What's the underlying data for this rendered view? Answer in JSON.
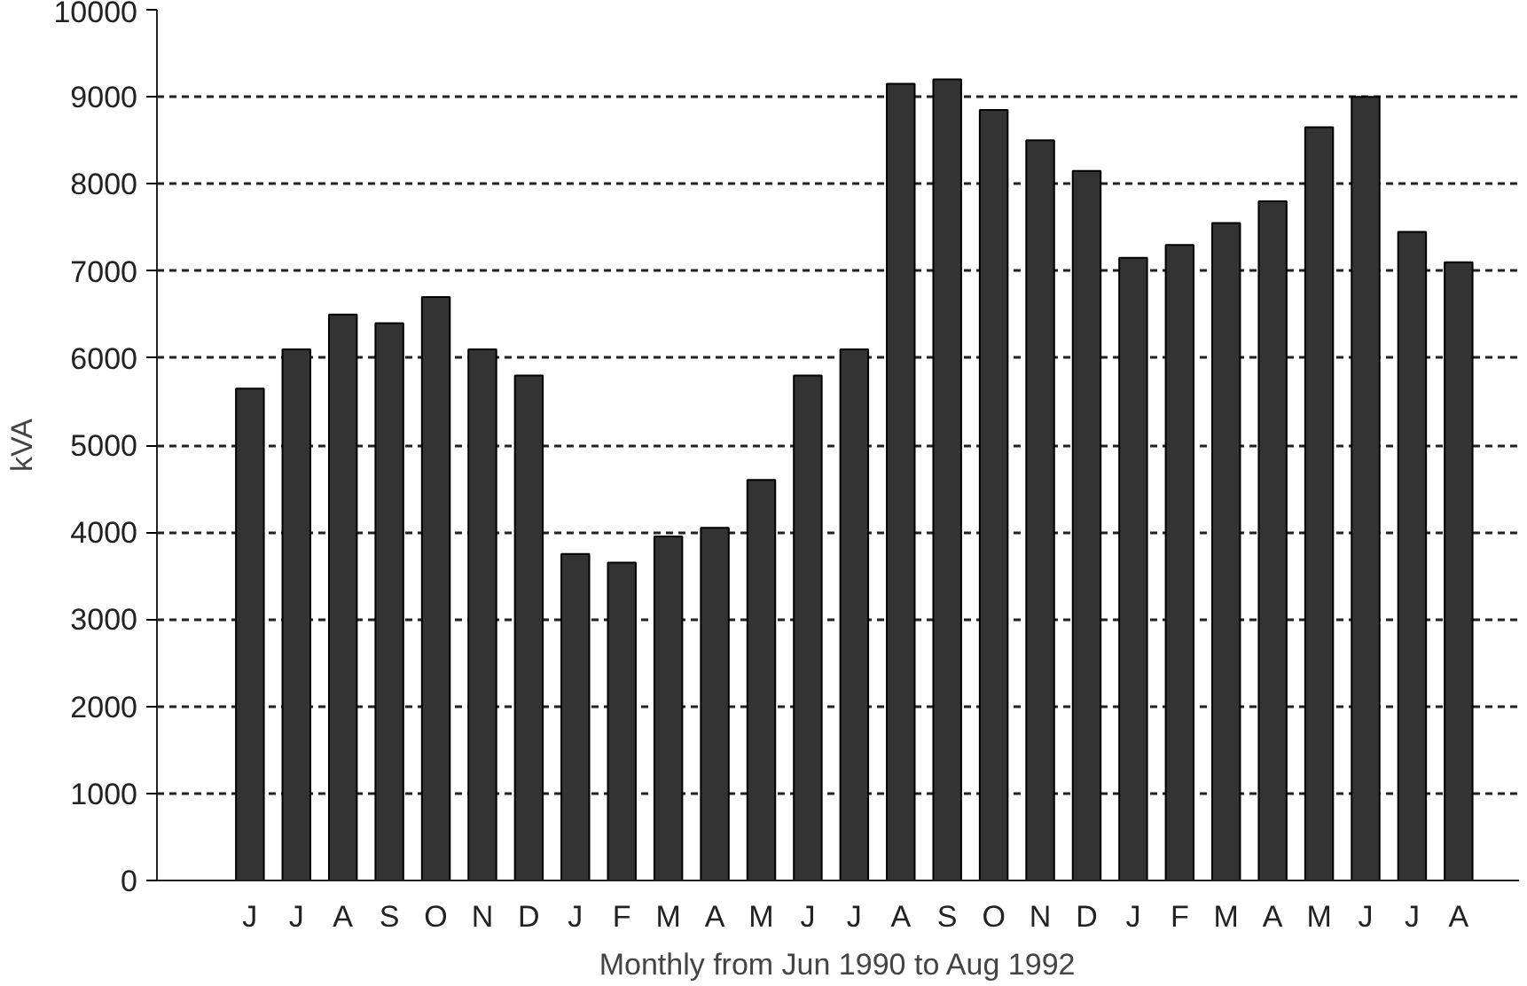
{
  "chart_data": {
    "type": "bar",
    "xlabel": "Monthly from Jun 1990 to Aug 1992",
    "ylabel": "kVA",
    "categories": [
      "J",
      "J",
      "A",
      "S",
      "O",
      "N",
      "D",
      "J",
      "F",
      "M",
      "A",
      "M",
      "J",
      "J",
      "A",
      "S",
      "O",
      "N",
      "D",
      "J",
      "F",
      "M",
      "A",
      "M",
      "J",
      "J",
      "A"
    ],
    "values": [
      5650,
      6100,
      6500,
      6400,
      6700,
      6100,
      5800,
      3750,
      3650,
      3950,
      4050,
      4600,
      5800,
      6100,
      9150,
      9200,
      8850,
      8500,
      8150,
      7150,
      7300,
      7550,
      7800,
      8650,
      9000,
      7450,
      7100
    ],
    "color": "#333333",
    "ylim": [
      0,
      10000
    ],
    "yticks": [
      0,
      1000,
      2000,
      3000,
      4000,
      5000,
      6000,
      7000,
      8000,
      9000,
      10000
    ],
    "grid": "y"
  }
}
